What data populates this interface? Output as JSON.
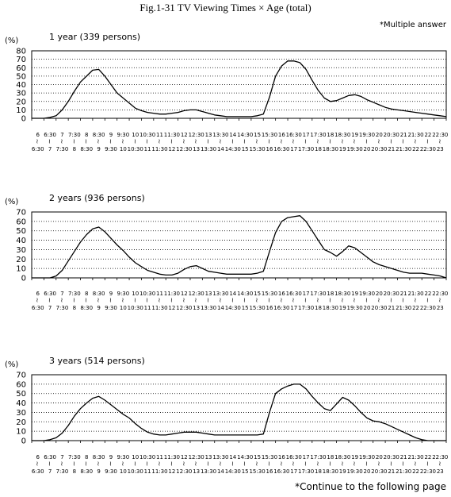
{
  "page": {
    "title": "Fig.1-31 TV Viewing Times × Age (total)",
    "note_top": "*Multiple answer",
    "note_bottom": "*Continue to the following page"
  },
  "slot_labels": [
    "6",
    "6:30",
    "7",
    "7:30",
    "8",
    "8:30",
    "9",
    "9:30",
    "10",
    "10:30",
    "11",
    "11:30",
    "12",
    "12:30",
    "13",
    "13:30",
    "14",
    "14:30",
    "15",
    "15:30",
    "16",
    "16:30",
    "17",
    "17:30",
    "18",
    "18:30",
    "19",
    "19:30",
    "20",
    "20:30",
    "21",
    "21:30",
    "22",
    "22:30",
    "23"
  ],
  "chart_data": [
    {
      "type": "line",
      "title": "1 year (339 persons)",
      "ylabel": "(%)",
      "ylim": [
        0,
        80
      ],
      "yticks": [
        0,
        10,
        20,
        30,
        40,
        50,
        60,
        70,
        80
      ],
      "x": [
        "6:00",
        "6:15",
        "6:30",
        "6:45",
        "7:00",
        "7:15",
        "7:30",
        "7:45",
        "8:00",
        "8:15",
        "8:30",
        "8:45",
        "9:00",
        "9:15",
        "9:30",
        "9:45",
        "10:00",
        "10:15",
        "10:30",
        "10:45",
        "11:00",
        "11:15",
        "11:30",
        "11:45",
        "12:00",
        "12:15",
        "12:30",
        "12:45",
        "13:00",
        "13:15",
        "13:30",
        "13:45",
        "14:00",
        "14:15",
        "14:30",
        "14:45",
        "15:00",
        "15:15",
        "15:30",
        "15:45",
        "16:00",
        "16:15",
        "16:30",
        "16:45",
        "17:00",
        "17:15",
        "17:30",
        "17:45",
        "18:00",
        "18:15",
        "18:30",
        "18:45",
        "19:00",
        "19:15",
        "19:30",
        "19:45",
        "20:00",
        "20:15",
        "20:30",
        "20:45",
        "21:00",
        "21:15",
        "21:30",
        "21:45",
        "22:00",
        "22:15",
        "22:30",
        "22:45",
        "23:00"
      ],
      "values": [
        0,
        0,
        0,
        1,
        3,
        10,
        20,
        32,
        43,
        50,
        57,
        58,
        50,
        40,
        30,
        24,
        18,
        12,
        9,
        7,
        6,
        5,
        5,
        6,
        7,
        9,
        10,
        10,
        8,
        6,
        4,
        3,
        2,
        2,
        2,
        2,
        2,
        3,
        5,
        25,
        50,
        62,
        68,
        68,
        66,
        58,
        45,
        33,
        24,
        20,
        21,
        24,
        27,
        28,
        26,
        22,
        19,
        16,
        13,
        11,
        10,
        9,
        8,
        7,
        6,
        5,
        4,
        3,
        2
      ]
    },
    {
      "type": "line",
      "title": "2 years (936 persons)",
      "ylabel": "(%)",
      "ylim": [
        0,
        70
      ],
      "yticks": [
        0,
        10,
        20,
        30,
        40,
        50,
        60,
        70
      ],
      "x": [
        "6:00",
        "6:15",
        "6:30",
        "6:45",
        "7:00",
        "7:15",
        "7:30",
        "7:45",
        "8:00",
        "8:15",
        "8:30",
        "8:45",
        "9:00",
        "9:15",
        "9:30",
        "9:45",
        "10:00",
        "10:15",
        "10:30",
        "10:45",
        "11:00",
        "11:15",
        "11:30",
        "11:45",
        "12:00",
        "12:15",
        "12:30",
        "12:45",
        "13:00",
        "13:15",
        "13:30",
        "13:45",
        "14:00",
        "14:15",
        "14:30",
        "14:45",
        "15:00",
        "15:15",
        "15:30",
        "15:45",
        "16:00",
        "16:15",
        "16:30",
        "16:45",
        "17:00",
        "17:15",
        "17:30",
        "17:45",
        "18:00",
        "18:15",
        "18:30",
        "18:45",
        "19:00",
        "19:15",
        "19:30",
        "19:45",
        "20:00",
        "20:15",
        "20:30",
        "20:45",
        "21:00",
        "21:15",
        "21:30",
        "21:45",
        "22:00",
        "22:15",
        "22:30",
        "22:45",
        "23:00"
      ],
      "values": [
        0,
        0,
        0,
        0,
        2,
        8,
        18,
        28,
        38,
        46,
        52,
        54,
        49,
        42,
        35,
        29,
        22,
        16,
        12,
        8,
        6,
        4,
        3,
        3,
        5,
        9,
        12,
        13,
        10,
        7,
        6,
        5,
        4,
        4,
        4,
        4,
        4,
        5,
        7,
        28,
        48,
        60,
        64,
        65,
        66,
        60,
        50,
        40,
        30,
        27,
        23,
        28,
        34,
        32,
        27,
        22,
        17,
        14,
        12,
        10,
        8,
        6,
        5,
        5,
        5,
        4,
        3,
        2,
        0
      ]
    },
    {
      "type": "line",
      "title": "3 years (514 persons)",
      "ylabel": "(%)",
      "ylim": [
        0,
        70
      ],
      "yticks": [
        0,
        10,
        20,
        30,
        40,
        50,
        60,
        70
      ],
      "x": [
        "6:00",
        "6:15",
        "6:30",
        "6:45",
        "7:00",
        "7:15",
        "7:30",
        "7:45",
        "8:00",
        "8:15",
        "8:30",
        "8:45",
        "9:00",
        "9:15",
        "9:30",
        "9:45",
        "10:00",
        "10:15",
        "10:30",
        "10:45",
        "11:00",
        "11:15",
        "11:30",
        "11:45",
        "12:00",
        "12:15",
        "12:30",
        "12:45",
        "13:00",
        "13:15",
        "13:30",
        "13:45",
        "14:00",
        "14:15",
        "14:30",
        "14:45",
        "15:00",
        "15:15",
        "15:30",
        "15:45",
        "16:00",
        "16:15",
        "16:30",
        "16:45",
        "17:00",
        "17:15",
        "17:30",
        "17:45",
        "18:00",
        "18:15",
        "18:30",
        "18:45",
        "19:00",
        "19:15",
        "19:30",
        "19:45",
        "20:00",
        "20:15",
        "20:30",
        "20:45",
        "21:00",
        "21:15",
        "21:30",
        "21:45",
        "22:00",
        "22:15",
        "22:30",
        "22:45",
        "23:00"
      ],
      "values": [
        0,
        0,
        0,
        1,
        3,
        8,
        16,
        26,
        34,
        40,
        45,
        47,
        43,
        38,
        33,
        28,
        24,
        18,
        13,
        9,
        7,
        6,
        6,
        7,
        8,
        9,
        9,
        9,
        8,
        7,
        6,
        6,
        6,
        6,
        6,
        6,
        6,
        6,
        7,
        30,
        50,
        55,
        58,
        60,
        60,
        55,
        47,
        40,
        34,
        32,
        39,
        46,
        43,
        37,
        30,
        24,
        21,
        20,
        18,
        15,
        12,
        9,
        6,
        3,
        1,
        0,
        0,
        0,
        0
      ]
    }
  ]
}
